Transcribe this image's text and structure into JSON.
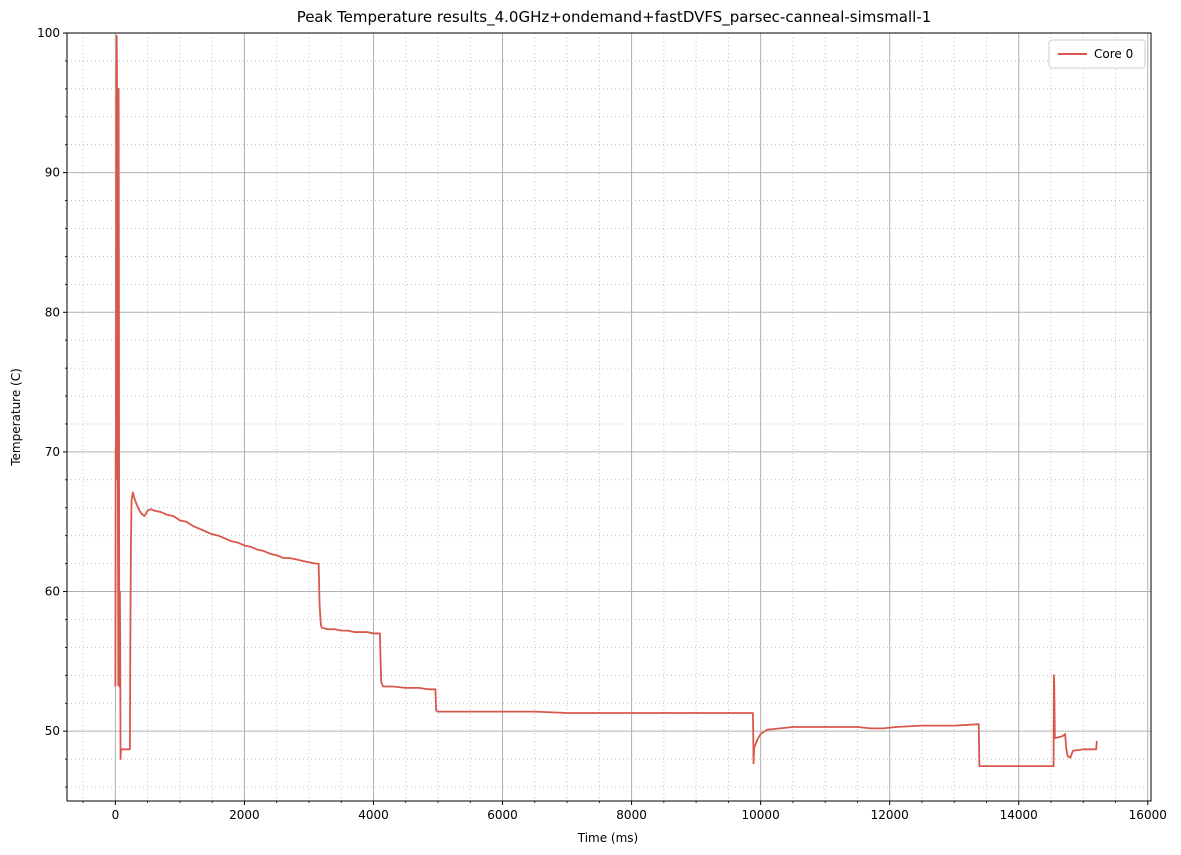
{
  "chart_data": {
    "type": "line",
    "title": "Peak Temperature results_4.0GHz+ondemand+fastDVFS_parsec-canneal-simsmall-1",
    "xlabel": "Time (ms)",
    "ylabel": "Temperature (C)",
    "xlim": [
      -750,
      16050
    ],
    "ylim": [
      45,
      100
    ],
    "xticks": [
      0,
      2000,
      4000,
      6000,
      8000,
      10000,
      12000,
      14000,
      16000
    ],
    "xtick_labels": [
      "0",
      "2000",
      "4000",
      "6000",
      "8000",
      "10000",
      "12000",
      "14000",
      "16000"
    ],
    "yticks": [
      50,
      60,
      70,
      80,
      90,
      100
    ],
    "ytick_labels": [
      "50",
      "60",
      "70",
      "80",
      "90",
      "100"
    ],
    "x_minor_step": 500,
    "y_minor_step": 2,
    "grid": true,
    "legend_position": "top-right",
    "series": [
      {
        "name": "Core 0",
        "color": "#d9584c",
        "points": [
          [
            0,
            53.2
          ],
          [
            5,
            70.3
          ],
          [
            10,
            68
          ],
          [
            15,
            95
          ],
          [
            20,
            99.8
          ],
          [
            25,
            97
          ],
          [
            30,
            90
          ],
          [
            35,
            80
          ],
          [
            40,
            65
          ],
          [
            45,
            53.3
          ],
          [
            50,
            96
          ],
          [
            55,
            80
          ],
          [
            60,
            53.2
          ],
          [
            65,
            53.2
          ],
          [
            70,
            60
          ],
          [
            75,
            56
          ],
          [
            80,
            48
          ],
          [
            85,
            48.6
          ],
          [
            100,
            48.7
          ],
          [
            150,
            48.7
          ],
          [
            200,
            48.7
          ],
          [
            225,
            48.7
          ],
          [
            230,
            55
          ],
          [
            240,
            63
          ],
          [
            250,
            66.5
          ],
          [
            270,
            67.1
          ],
          [
            300,
            66.6
          ],
          [
            350,
            66.0
          ],
          [
            400,
            65.6
          ],
          [
            450,
            65.4
          ],
          [
            500,
            65.8
          ],
          [
            550,
            65.9
          ],
          [
            600,
            65.8
          ],
          [
            700,
            65.7
          ],
          [
            800,
            65.5
          ],
          [
            900,
            65.4
          ],
          [
            1000,
            65.1
          ],
          [
            1100,
            65.0
          ],
          [
            1200,
            64.7
          ],
          [
            1300,
            64.5
          ],
          [
            1400,
            64.3
          ],
          [
            1500,
            64.1
          ],
          [
            1600,
            64.0
          ],
          [
            1700,
            63.8
          ],
          [
            1800,
            63.6
          ],
          [
            1900,
            63.5
          ],
          [
            2000,
            63.3
          ],
          [
            2100,
            63.2
          ],
          [
            2200,
            63.0
          ],
          [
            2300,
            62.9
          ],
          [
            2400,
            62.7
          ],
          [
            2500,
            62.6
          ],
          [
            2600,
            62.4
          ],
          [
            2700,
            62.4
          ],
          [
            2800,
            62.3
          ],
          [
            2900,
            62.2
          ],
          [
            3000,
            62.1
          ],
          [
            3100,
            62.0
          ],
          [
            3150,
            62.0
          ],
          [
            3165,
            59
          ],
          [
            3185,
            57.6
          ],
          [
            3200,
            57.4
          ],
          [
            3300,
            57.3
          ],
          [
            3400,
            57.3
          ],
          [
            3500,
            57.2
          ],
          [
            3600,
            57.2
          ],
          [
            3700,
            57.1
          ],
          [
            3800,
            57.1
          ],
          [
            3900,
            57.1
          ],
          [
            4000,
            57.0
          ],
          [
            4100,
            57.0
          ],
          [
            4110,
            55
          ],
          [
            4120,
            53.5
          ],
          [
            4150,
            53.2
          ],
          [
            4300,
            53.2
          ],
          [
            4500,
            53.1
          ],
          [
            4700,
            53.1
          ],
          [
            4850,
            53.0
          ],
          [
            4960,
            53.0
          ],
          [
            4970,
            51.5
          ],
          [
            4990,
            51.4
          ],
          [
            5200,
            51.4
          ],
          [
            5600,
            51.4
          ],
          [
            6000,
            51.4
          ],
          [
            6500,
            51.4
          ],
          [
            7000,
            51.3
          ],
          [
            7500,
            51.3
          ],
          [
            8000,
            51.3
          ],
          [
            8500,
            51.3
          ],
          [
            9000,
            51.3
          ],
          [
            9500,
            51.3
          ],
          [
            9880,
            51.3
          ],
          [
            9885,
            50
          ],
          [
            9890,
            47.7
          ],
          [
            9900,
            48.8
          ],
          [
            9950,
            49.4
          ],
          [
            10000,
            49.8
          ],
          [
            10100,
            50.1
          ],
          [
            10300,
            50.2
          ],
          [
            10500,
            50.3
          ],
          [
            11000,
            50.3
          ],
          [
            11500,
            50.3
          ],
          [
            11700,
            50.2
          ],
          [
            11900,
            50.2
          ],
          [
            12100,
            50.3
          ],
          [
            12500,
            50.4
          ],
          [
            13000,
            50.4
          ],
          [
            13380,
            50.5
          ],
          [
            13390,
            47.5
          ],
          [
            13600,
            47.5
          ],
          [
            14000,
            47.5
          ],
          [
            14400,
            47.5
          ],
          [
            14540,
            47.5
          ],
          [
            14545,
            54
          ],
          [
            14550,
            53.5
          ],
          [
            14560,
            49.5
          ],
          [
            14650,
            49.6
          ],
          [
            14700,
            49.7
          ],
          [
            14720,
            49.8
          ],
          [
            14735,
            48.8
          ],
          [
            14760,
            48.2
          ],
          [
            14800,
            48.1
          ],
          [
            14840,
            48.6
          ],
          [
            15000,
            48.7
          ],
          [
            15150,
            48.7
          ],
          [
            15200,
            48.7
          ],
          [
            15210,
            49.3
          ]
        ]
      }
    ]
  }
}
